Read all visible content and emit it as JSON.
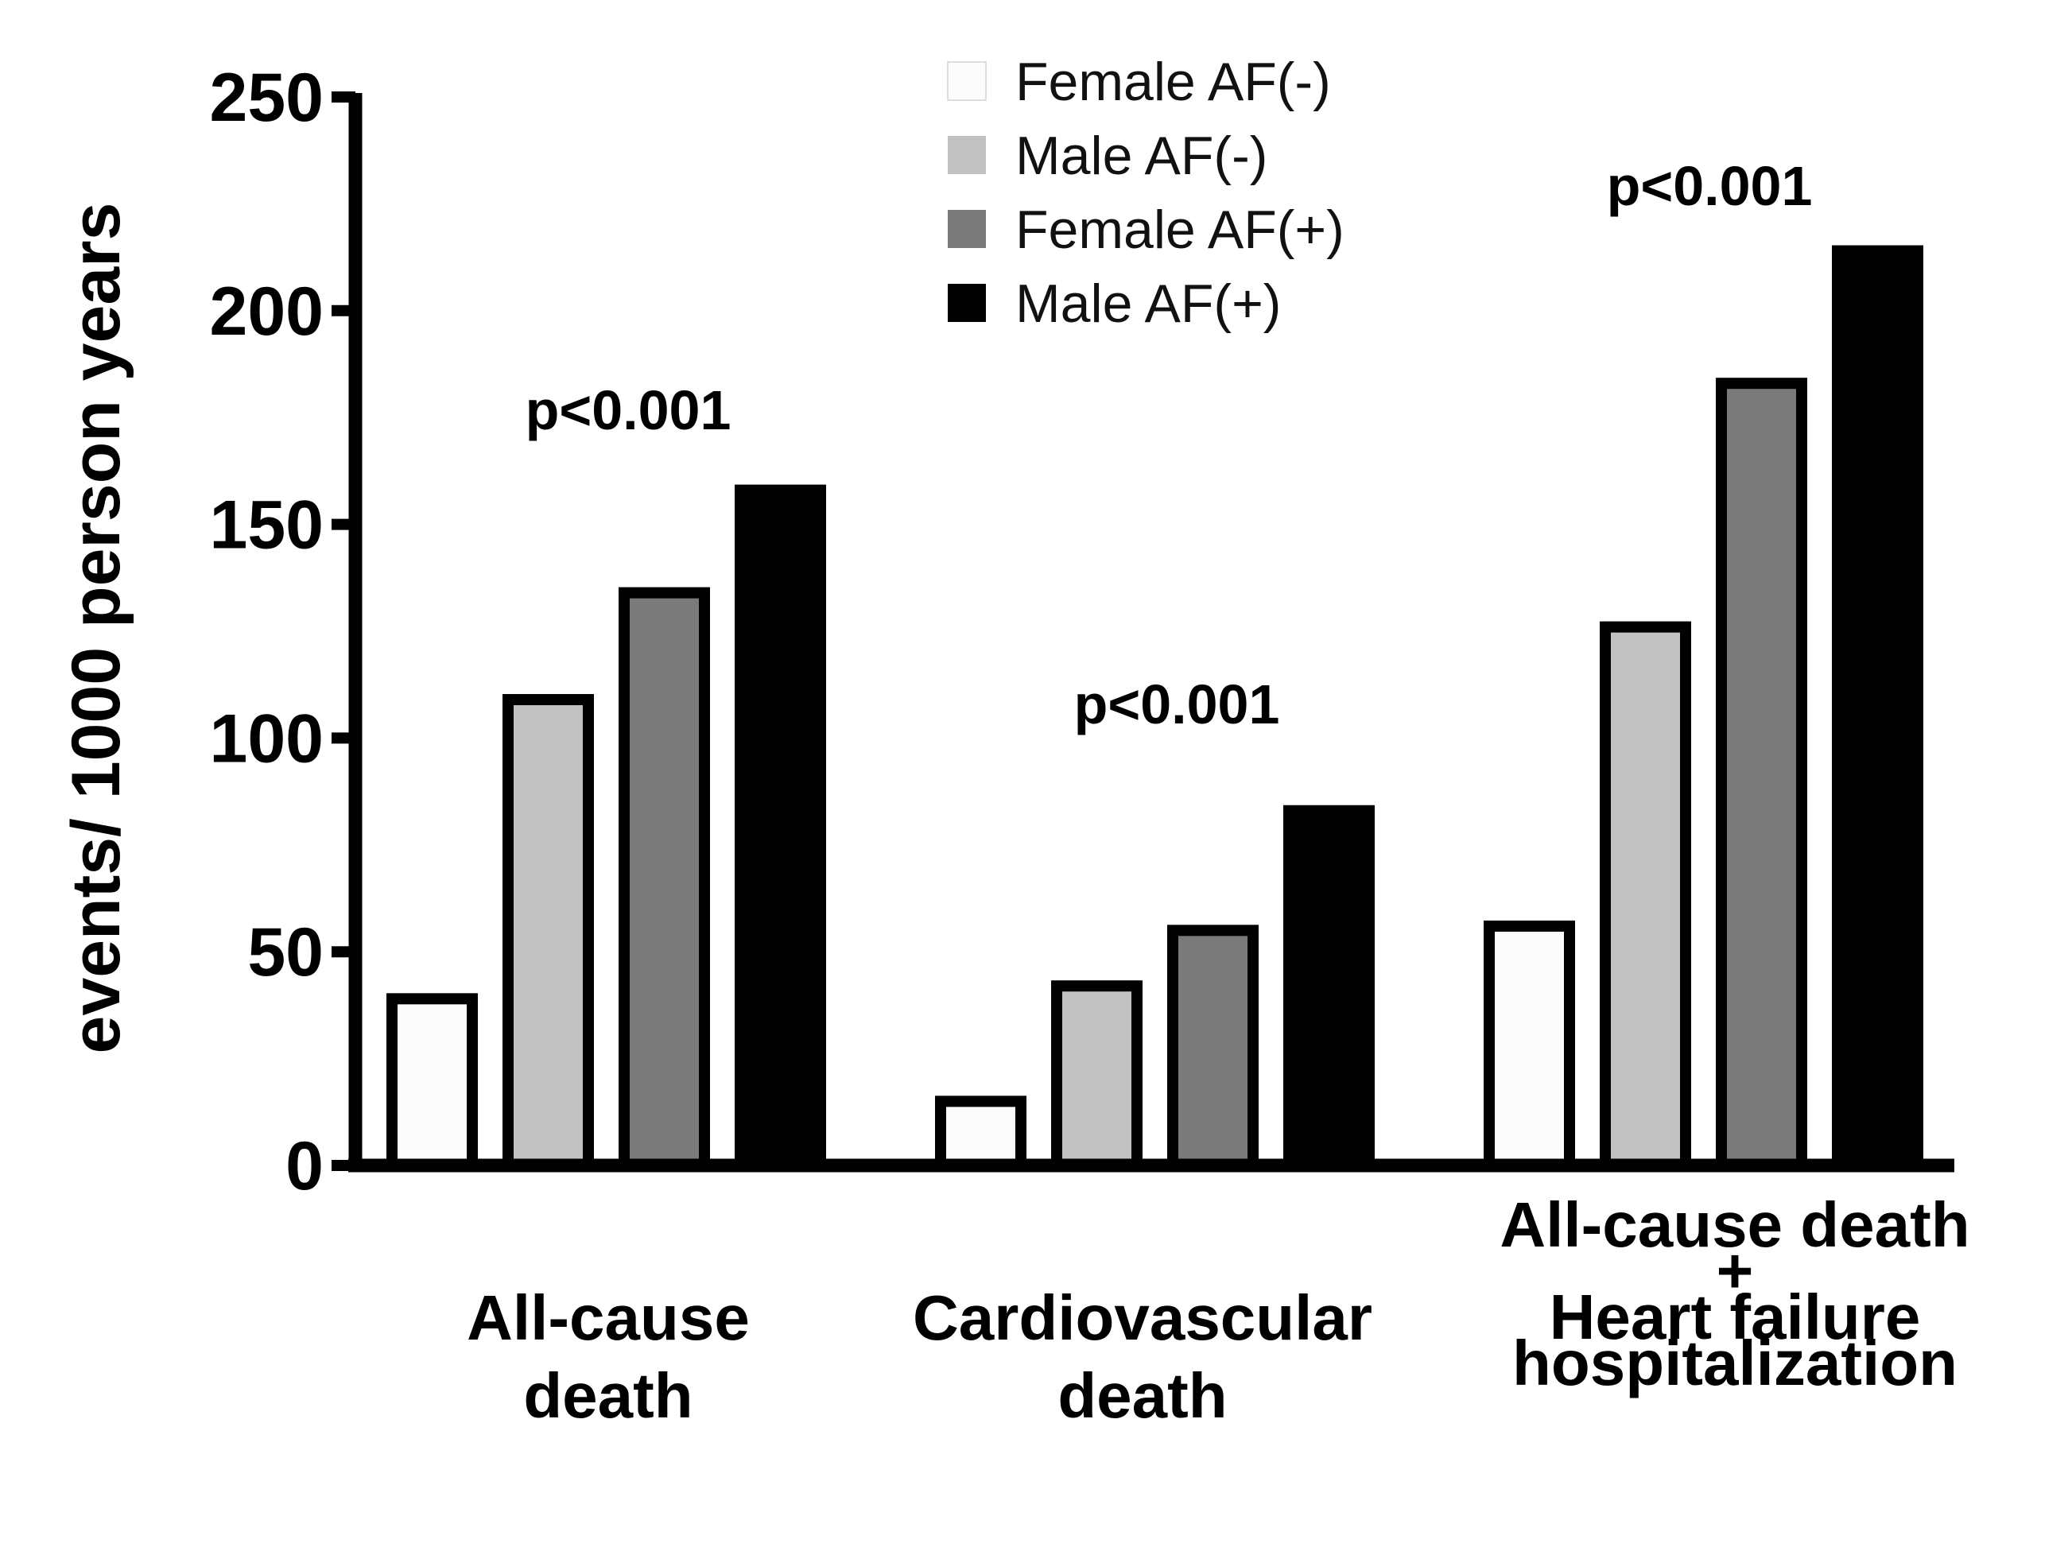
{
  "chart_data": {
    "type": "bar",
    "title": "",
    "xlabel": "",
    "ylabel": "events/ 1000 person years",
    "ylim": [
      0,
      250
    ],
    "yticks": [
      0,
      50,
      100,
      150,
      200,
      250
    ],
    "ytick_labels": [
      "0",
      "50",
      "100",
      "150",
      "200",
      "250"
    ],
    "grid": false,
    "legend_position": "top-center",
    "categories": [
      {
        "lines": [
          "All-cause",
          "death"
        ]
      },
      {
        "lines": [
          "Cardiovascular",
          "death"
        ]
      },
      {
        "lines": [
          "All-cause death",
          "+",
          "Heart failure",
          "hospitalization"
        ]
      }
    ],
    "series": [
      {
        "name": "Female AF(-)",
        "color": "#fbfbfb",
        "values": [
          39,
          15,
          56
        ]
      },
      {
        "name": "Male AF(-)",
        "color": "#c2c2c2",
        "values": [
          109,
          42,
          126
        ]
      },
      {
        "name": "Female AF(+)",
        "color": "#7a7a7a",
        "values": [
          134,
          55,
          183
        ]
      },
      {
        "name": "Male AF(+)",
        "color": "#000000",
        "values": [
          158,
          83,
          214
        ]
      }
    ],
    "annotations": [
      "p<0.001",
      "p<0.001",
      "p<0.001"
    ]
  }
}
